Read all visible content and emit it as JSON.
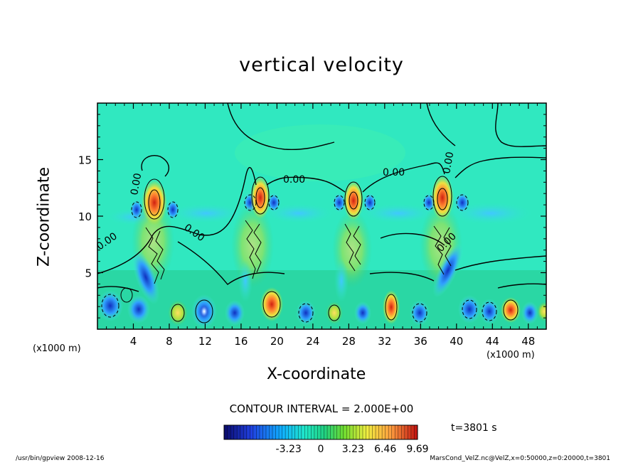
{
  "chart_data": {
    "type": "heatmap",
    "title": "vertical velocity",
    "xlabel": "X-coordinate",
    "ylabel": "Z-coordinate",
    "x_unit_left": "(x1000 m)",
    "x_unit_right": "(x1000 m)",
    "xlim": [
      0,
      50
    ],
    "ylim": [
      0,
      20
    ],
    "x_ticks": [
      4,
      8,
      12,
      16,
      20,
      24,
      28,
      32,
      36,
      40,
      44,
      48
    ],
    "x_tick_labels": [
      "4",
      "8",
      "12",
      "16",
      "20",
      "24",
      "28",
      "32",
      "36",
      "40",
      "44",
      "48"
    ],
    "y_ticks": [
      5,
      10,
      15
    ],
    "y_tick_labels": [
      "5",
      "10",
      "15"
    ],
    "contour_labels": [
      "0.00",
      "0.00",
      "0.00",
      "0.00",
      "0.00",
      "0.00",
      "0.00"
    ],
    "contour_interval": "CONTOUR INTERVAL = 2.000E+00",
    "colorbar": {
      "min": -9.69,
      "max": 9.69,
      "tick_values": [
        -3.23,
        0,
        3.23,
        6.46,
        9.69
      ],
      "tick_labels": [
        "-3.23",
        "0",
        "3.23",
        "6.46",
        "9.69"
      ]
    },
    "convective_cells_x": [
      6.5,
      18,
      28.5,
      38.5
    ],
    "time_label": "t=3801 s"
  },
  "footer": {
    "left": "/usr/bin/gpview   2008-12-16",
    "right": "MarsCond_VelZ.nc@VelZ,x=0:50000,z=0:20000,t=3801"
  }
}
